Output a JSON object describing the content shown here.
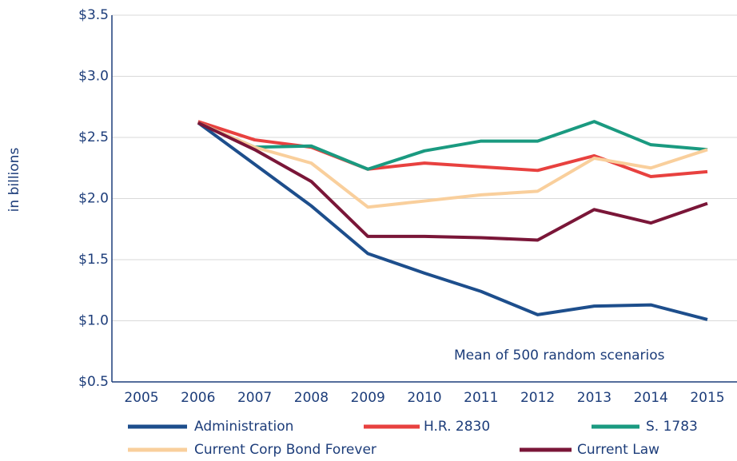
{
  "chart_data": {
    "type": "line",
    "y_label": "in billions",
    "annotation": "Mean of 500 random scenarios",
    "categories": [
      "2005",
      "2006",
      "2007",
      "2008",
      "2009",
      "2010",
      "2011",
      "2012",
      "2013",
      "2014",
      "2015"
    ],
    "series": [
      {
        "name": "Administration",
        "color": "#1d4e8c",
        "values": [
          null,
          2.62,
          2.28,
          1.94,
          1.55,
          1.39,
          1.24,
          1.05,
          1.12,
          1.13,
          1.01
        ]
      },
      {
        "name": "H.R. 2830",
        "color": "#e8413f",
        "values": [
          null,
          2.63,
          2.48,
          2.42,
          2.24,
          2.29,
          2.26,
          2.23,
          2.35,
          2.18,
          2.22
        ]
      },
      {
        "name": "S. 1783",
        "color": "#1a9a80",
        "values": [
          null,
          2.62,
          2.42,
          2.43,
          2.24,
          2.39,
          2.47,
          2.47,
          2.63,
          2.44,
          2.4
        ]
      },
      {
        "name": "Current Corp Bond Forever",
        "color": "#f9cf9c",
        "values": [
          null,
          2.62,
          2.42,
          2.29,
          1.93,
          1.98,
          2.03,
          2.06,
          2.33,
          2.25,
          2.4
        ]
      },
      {
        "name": "Current Law",
        "color": "#7a1638",
        "values": [
          null,
          2.62,
          2.4,
          2.14,
          1.69,
          1.69,
          1.68,
          1.66,
          1.91,
          1.8,
          1.96
        ]
      }
    ],
    "ylim": [
      0.5,
      3.5
    ],
    "yticks": [
      {
        "value": 0.5,
        "label": "$0.5"
      },
      {
        "value": 1.0,
        "label": "$1.0"
      },
      {
        "value": 1.5,
        "label": "$1.5"
      },
      {
        "value": 2.0,
        "label": "$2.0"
      },
      {
        "value": 2.5,
        "label": "$2.5"
      },
      {
        "value": 3.0,
        "label": "$3.0"
      },
      {
        "value": 3.5,
        "label": "$3.5"
      }
    ],
    "grid": true
  }
}
